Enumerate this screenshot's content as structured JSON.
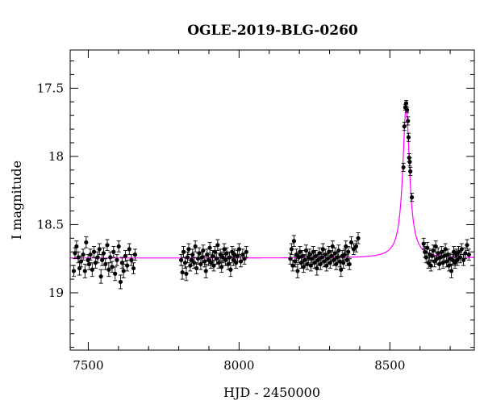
{
  "chart_data": {
    "type": "scatter",
    "title": "OGLE-2019-BLG-0260",
    "xlabel": "HJD - 2450000",
    "ylabel": "I magnitude",
    "xlim": [
      7440,
      8780
    ],
    "ylim": [
      19.42,
      17.22
    ],
    "y_inverted": true,
    "x_ticks": [
      7500,
      8000,
      8500
    ],
    "y_ticks": [
      17.5,
      18,
      18.5,
      19
    ],
    "x_tick_labels": [
      "7500",
      "8000",
      "8500"
    ],
    "y_tick_labels": [
      "17.5",
      "18",
      "18.5",
      "19"
    ],
    "x_minor_step": 100,
    "y_minor_step": 0.1,
    "grid": false,
    "colors": {
      "data": "#000000",
      "model": "#ff00ff"
    },
    "model": {
      "name": "",
      "baseline_mag": 18.745,
      "peak_time": 8554,
      "peak_mag": 17.63,
      "width_days": 13.5,
      "x_range": [
        7440,
        8780
      ]
    },
    "series": [
      {
        "name": "",
        "marker": "filled-circle",
        "error_bars": true,
        "points": [
          [
            7452,
            18.84,
            0.04
          ],
          [
            7456,
            18.71,
            0.04
          ],
          [
            7461,
            18.66,
            0.04
          ],
          [
            7467,
            18.74,
            0.04
          ],
          [
            7471,
            18.82,
            0.05
          ],
          [
            7476,
            18.77,
            0.04
          ],
          [
            7483,
            18.72,
            0.04
          ],
          [
            7489,
            18.84,
            0.05
          ],
          [
            7493,
            18.63,
            0.04
          ],
          [
            7499,
            18.76,
            0.04
          ],
          [
            7503,
            18.79,
            0.04
          ],
          [
            7507,
            18.72,
            0.04
          ],
          [
            7513,
            18.83,
            0.05
          ],
          [
            7519,
            18.7,
            0.04
          ],
          [
            7524,
            18.78,
            0.04
          ],
          [
            7531,
            18.74,
            0.04
          ],
          [
            7537,
            18.68,
            0.04
          ],
          [
            7542,
            18.88,
            0.05
          ],
          [
            7546,
            18.76,
            0.04
          ],
          [
            7551,
            18.71,
            0.04
          ],
          [
            7557,
            18.79,
            0.04
          ],
          [
            7563,
            18.65,
            0.04
          ],
          [
            7568,
            18.83,
            0.05
          ],
          [
            7573,
            18.74,
            0.04
          ],
          [
            7579,
            18.81,
            0.04
          ],
          [
            7584,
            18.7,
            0.04
          ],
          [
            7589,
            18.86,
            0.05
          ],
          [
            7595,
            18.76,
            0.04
          ],
          [
            7601,
            18.66,
            0.04
          ],
          [
            7607,
            18.92,
            0.05
          ],
          [
            7612,
            18.78,
            0.04
          ],
          [
            7617,
            18.84,
            0.05
          ],
          [
            7623,
            18.73,
            0.04
          ],
          [
            7629,
            18.8,
            0.04
          ],
          [
            7636,
            18.68,
            0.04
          ],
          [
            7643,
            18.76,
            0.04
          ],
          [
            7650,
            18.82,
            0.04
          ],
          [
            7655,
            18.72,
            0.04
          ],
          [
            7808,
            18.76,
            0.04
          ],
          [
            7812,
            18.85,
            0.05
          ],
          [
            7816,
            18.7,
            0.04
          ],
          [
            7821,
            18.78,
            0.04
          ],
          [
            7825,
            18.86,
            0.05
          ],
          [
            7829,
            18.74,
            0.04
          ],
          [
            7833,
            18.68,
            0.04
          ],
          [
            7838,
            18.8,
            0.04
          ],
          [
            7842,
            18.76,
            0.04
          ],
          [
            7846,
            18.72,
            0.04
          ],
          [
            7851,
            18.78,
            0.04
          ],
          [
            7855,
            18.66,
            0.04
          ],
          [
            7859,
            18.82,
            0.04
          ],
          [
            7864,
            18.75,
            0.04
          ],
          [
            7868,
            18.71,
            0.04
          ],
          [
            7873,
            18.79,
            0.04
          ],
          [
            7877,
            18.74,
            0.04
          ],
          [
            7881,
            18.69,
            0.04
          ],
          [
            7886,
            18.77,
            0.04
          ],
          [
            7890,
            18.84,
            0.05
          ],
          [
            7894,
            18.72,
            0.04
          ],
          [
            7899,
            18.76,
            0.04
          ],
          [
            7903,
            18.67,
            0.04
          ],
          [
            7907,
            18.78,
            0.04
          ],
          [
            7912,
            18.73,
            0.04
          ],
          [
            7916,
            18.8,
            0.04
          ],
          [
            7920,
            18.7,
            0.04
          ],
          [
            7925,
            18.75,
            0.04
          ],
          [
            7929,
            18.65,
            0.04
          ],
          [
            7933,
            18.78,
            0.04
          ],
          [
            7938,
            18.72,
            0.04
          ],
          [
            7942,
            18.81,
            0.04
          ],
          [
            7946,
            18.74,
            0.04
          ],
          [
            7951,
            18.68,
            0.04
          ],
          [
            7955,
            18.76,
            0.04
          ],
          [
            7959,
            18.71,
            0.04
          ],
          [
            7964,
            18.79,
            0.04
          ],
          [
            7968,
            18.74,
            0.04
          ],
          [
            7972,
            18.83,
            0.05
          ],
          [
            7977,
            18.7,
            0.04
          ],
          [
            7981,
            18.76,
            0.04
          ],
          [
            7985,
            18.72,
            0.04
          ],
          [
            7990,
            18.78,
            0.04
          ],
          [
            7995,
            18.73,
            0.04
          ],
          [
            8000,
            18.68,
            0.04
          ],
          [
            8006,
            18.77,
            0.04
          ],
          [
            8012,
            18.72,
            0.04
          ],
          [
            8018,
            18.75,
            0.04
          ],
          [
            8024,
            18.7,
            0.04
          ],
          [
            8170,
            18.75,
            0.04
          ],
          [
            8174,
            18.68,
            0.04
          ],
          [
            8178,
            18.8,
            0.04
          ],
          [
            8182,
            18.62,
            0.04
          ],
          [
            8186,
            18.77,
            0.04
          ],
          [
            8190,
            18.72,
            0.04
          ],
          [
            8194,
            18.84,
            0.05
          ],
          [
            8198,
            18.74,
            0.04
          ],
          [
            8202,
            18.7,
            0.04
          ],
          [
            8206,
            18.78,
            0.04
          ],
          [
            8210,
            18.73,
            0.04
          ],
          [
            8214,
            18.81,
            0.04
          ],
          [
            8218,
            18.76,
            0.04
          ],
          [
            8222,
            18.69,
            0.04
          ],
          [
            8226,
            18.79,
            0.04
          ],
          [
            8230,
            18.74,
            0.04
          ],
          [
            8234,
            18.72,
            0.04
          ],
          [
            8238,
            18.8,
            0.04
          ],
          [
            8242,
            18.75,
            0.04
          ],
          [
            8246,
            18.7,
            0.04
          ],
          [
            8250,
            18.78,
            0.04
          ],
          [
            8254,
            18.73,
            0.04
          ],
          [
            8258,
            18.82,
            0.05
          ],
          [
            8262,
            18.76,
            0.04
          ],
          [
            8266,
            18.71,
            0.04
          ],
          [
            8270,
            18.79,
            0.04
          ],
          [
            8274,
            18.74,
            0.04
          ],
          [
            8278,
            18.68,
            0.04
          ],
          [
            8282,
            18.77,
            0.04
          ],
          [
            8286,
            18.72,
            0.04
          ],
          [
            8290,
            18.8,
            0.04
          ],
          [
            8294,
            18.75,
            0.04
          ],
          [
            8298,
            18.7,
            0.04
          ],
          [
            8302,
            18.78,
            0.04
          ],
          [
            8306,
            18.73,
            0.04
          ],
          [
            8310,
            18.66,
            0.04
          ],
          [
            8314,
            18.76,
            0.04
          ],
          [
            8318,
            18.71,
            0.04
          ],
          [
            8322,
            18.79,
            0.04
          ],
          [
            8326,
            18.74,
            0.04
          ],
          [
            8330,
            18.69,
            0.04
          ],
          [
            8334,
            18.77,
            0.04
          ],
          [
            8338,
            18.83,
            0.05
          ],
          [
            8342,
            18.73,
            0.04
          ],
          [
            8346,
            18.78,
            0.04
          ],
          [
            8350,
            18.72,
            0.04
          ],
          [
            8354,
            18.66,
            0.04
          ],
          [
            8358,
            18.76,
            0.04
          ],
          [
            8362,
            18.7,
            0.04
          ],
          [
            8366,
            18.79,
            0.04
          ],
          [
            8372,
            18.63,
            0.04
          ],
          [
            8380,
            18.68,
            0.04
          ],
          [
            8388,
            18.66,
            0.04
          ],
          [
            8395,
            18.6,
            0.04
          ],
          [
            8545,
            18.08,
            0.03
          ],
          [
            8548,
            17.78,
            0.03
          ],
          [
            8551,
            17.64,
            0.02
          ],
          [
            8554,
            17.61,
            0.02
          ],
          [
            8557,
            17.66,
            0.02
          ],
          [
            8560,
            17.74,
            0.03
          ],
          [
            8562,
            17.86,
            0.03
          ],
          [
            8564,
            18.01,
            0.03
          ],
          [
            8566,
            18.04,
            0.03
          ],
          [
            8568,
            18.11,
            0.03
          ],
          [
            8573,
            18.3,
            0.03
          ],
          [
            8612,
            18.64,
            0.04
          ],
          [
            8616,
            18.7,
            0.04
          ],
          [
            8620,
            18.74,
            0.04
          ],
          [
            8624,
            18.67,
            0.04
          ],
          [
            8628,
            18.78,
            0.04
          ],
          [
            8632,
            18.72,
            0.04
          ],
          [
            8636,
            18.8,
            0.04
          ],
          [
            8640,
            18.73,
            0.04
          ],
          [
            8644,
            18.69,
            0.04
          ],
          [
            8648,
            18.77,
            0.04
          ],
          [
            8652,
            18.66,
            0.04
          ],
          [
            8656,
            18.75,
            0.04
          ],
          [
            8660,
            18.71,
            0.04
          ],
          [
            8664,
            18.79,
            0.04
          ],
          [
            8668,
            18.74,
            0.04
          ],
          [
            8672,
            18.7,
            0.04
          ],
          [
            8676,
            18.78,
            0.04
          ],
          [
            8680,
            18.73,
            0.04
          ],
          [
            8684,
            18.68,
            0.04
          ],
          [
            8688,
            18.77,
            0.04
          ],
          [
            8692,
            18.72,
            0.04
          ],
          [
            8696,
            18.8,
            0.04
          ],
          [
            8700,
            18.75,
            0.04
          ],
          [
            8704,
            18.84,
            0.05
          ],
          [
            8708,
            18.76,
            0.04
          ],
          [
            8712,
            18.7,
            0.04
          ],
          [
            8716,
            18.78,
            0.04
          ],
          [
            8720,
            18.72,
            0.04
          ],
          [
            8724,
            18.76,
            0.04
          ],
          [
            8728,
            18.7,
            0.04
          ],
          [
            8733,
            18.74,
            0.04
          ],
          [
            8738,
            18.68,
            0.04
          ],
          [
            8744,
            18.76,
            0.04
          ],
          [
            8750,
            18.71,
            0.04
          ],
          [
            8756,
            18.65,
            0.04
          ],
          [
            8762,
            18.72,
            0.04
          ]
        ]
      }
    ]
  }
}
